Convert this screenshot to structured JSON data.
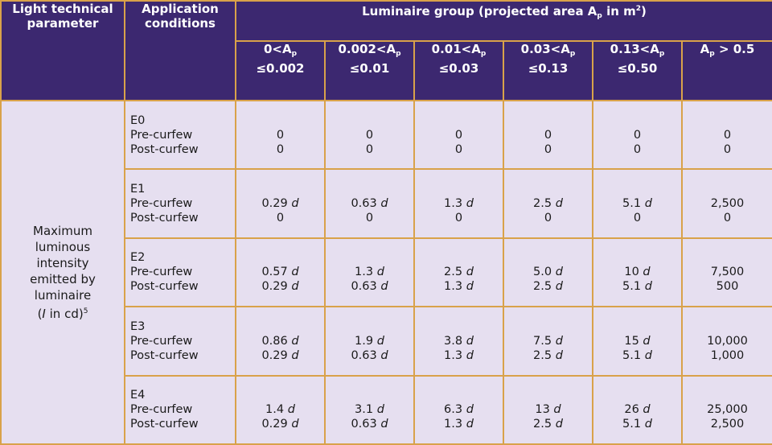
{
  "header": {
    "param": "Light technical parameter",
    "conditions": "Application conditions",
    "group_text_pre": "Luminaire group (projected area A",
    "group_sub": "p",
    "group_text_mid": " in m",
    "group_sup": "2",
    "group_text_post": ")"
  },
  "columns": [
    {
      "a": "0<A",
      "sub": "p",
      "b": "≤0.002"
    },
    {
      "a": "0.002<A",
      "sub": "p",
      "b": "≤0.01"
    },
    {
      "a": "0.01<A",
      "sub": "p",
      "b": "≤0.03"
    },
    {
      "a": "0.03<A",
      "sub": "p",
      "b": "≤0.13"
    },
    {
      "a": "0.13<A",
      "sub": "p",
      "b": "≤0.50"
    },
    {
      "a": "A",
      "sub": "p",
      "b": " > 0.5"
    }
  ],
  "param": {
    "line1": "Maximum",
    "line2": "luminous",
    "line3": "intensity",
    "line4": "emitted by",
    "line5": "luminaire",
    "unit_open": "(",
    "unit_var": "I",
    "unit_rest": " in cd)",
    "unit_sup": "5"
  },
  "labels": {
    "pre": "Pre-curfew",
    "post": "Post-curfew"
  },
  "rows": [
    {
      "zone": "E0",
      "cells": [
        {
          "pre": "0",
          "pre_d": "",
          "post": "0",
          "post_d": ""
        },
        {
          "pre": "0",
          "pre_d": "",
          "post": "0",
          "post_d": ""
        },
        {
          "pre": "0",
          "pre_d": "",
          "post": "0",
          "post_d": ""
        },
        {
          "pre": "0",
          "pre_d": "",
          "post": "0",
          "post_d": ""
        },
        {
          "pre": "0",
          "pre_d": "",
          "post": "0",
          "post_d": ""
        },
        {
          "pre": "0",
          "pre_d": "",
          "post": "0",
          "post_d": ""
        }
      ]
    },
    {
      "zone": "E1",
      "cells": [
        {
          "pre": "0.29 ",
          "pre_d": "d",
          "post": "0",
          "post_d": ""
        },
        {
          "pre": "0.63 ",
          "pre_d": "d",
          "post": "0",
          "post_d": ""
        },
        {
          "pre": "1.3 ",
          "pre_d": "d",
          "post": "0",
          "post_d": ""
        },
        {
          "pre": "2.5 ",
          "pre_d": "d",
          "post": "0",
          "post_d": ""
        },
        {
          "pre": "5.1 ",
          "pre_d": "d",
          "post": "0",
          "post_d": ""
        },
        {
          "pre": "2,500",
          "pre_d": "",
          "post": "0",
          "post_d": ""
        }
      ]
    },
    {
      "zone": "E2",
      "cells": [
        {
          "pre": "0.57 ",
          "pre_d": "d",
          "post": "0.29 ",
          "post_d": "d"
        },
        {
          "pre": "1.3 ",
          "pre_d": "d",
          "post": "0.63 ",
          "post_d": "d"
        },
        {
          "pre": "2.5 ",
          "pre_d": "d",
          "post": "1.3 ",
          "post_d": "d"
        },
        {
          "pre": "5.0 ",
          "pre_d": "d",
          "post": "2.5 ",
          "post_d": "d"
        },
        {
          "pre": "10 ",
          "pre_d": "d",
          "post": "5.1 ",
          "post_d": "d"
        },
        {
          "pre": "7,500",
          "pre_d": "",
          "post": "500",
          "post_d": ""
        }
      ]
    },
    {
      "zone": "E3",
      "cells": [
        {
          "pre": "0.86 ",
          "pre_d": "d",
          "post": "0.29 ",
          "post_d": "d"
        },
        {
          "pre": "1.9 ",
          "pre_d": "d",
          "post": "0.63 ",
          "post_d": "d"
        },
        {
          "pre": "3.8 ",
          "pre_d": "d",
          "post": "1.3 ",
          "post_d": "d"
        },
        {
          "pre": "7.5 ",
          "pre_d": "d",
          "post": "2.5 ",
          "post_d": "d"
        },
        {
          "pre": "15 ",
          "pre_d": "d",
          "post": "5.1 ",
          "post_d": "d"
        },
        {
          "pre": "10,000",
          "pre_d": "",
          "post": "1,000",
          "post_d": ""
        }
      ]
    },
    {
      "zone": "E4",
      "cells": [
        {
          "pre": "1.4 ",
          "pre_d": "d",
          "post": "0.29 ",
          "post_d": "d"
        },
        {
          "pre": "3.1 ",
          "pre_d": "d",
          "post": "0.63 ",
          "post_d": "d"
        },
        {
          "pre": "6.3 ",
          "pre_d": "d",
          "post": "1.3 ",
          "post_d": "d"
        },
        {
          "pre": "13 ",
          "pre_d": "d",
          "post": "2.5 ",
          "post_d": "d"
        },
        {
          "pre": "26 ",
          "pre_d": "d",
          "post": "5.1 ",
          "post_d": "d"
        },
        {
          "pre": "25,000",
          "pre_d": "",
          "post": "2,500",
          "post_d": ""
        }
      ]
    }
  ],
  "colors": {
    "header_bg": "#3c2870",
    "cell_bg": "#e6dff0",
    "border": "#d9a24a"
  }
}
